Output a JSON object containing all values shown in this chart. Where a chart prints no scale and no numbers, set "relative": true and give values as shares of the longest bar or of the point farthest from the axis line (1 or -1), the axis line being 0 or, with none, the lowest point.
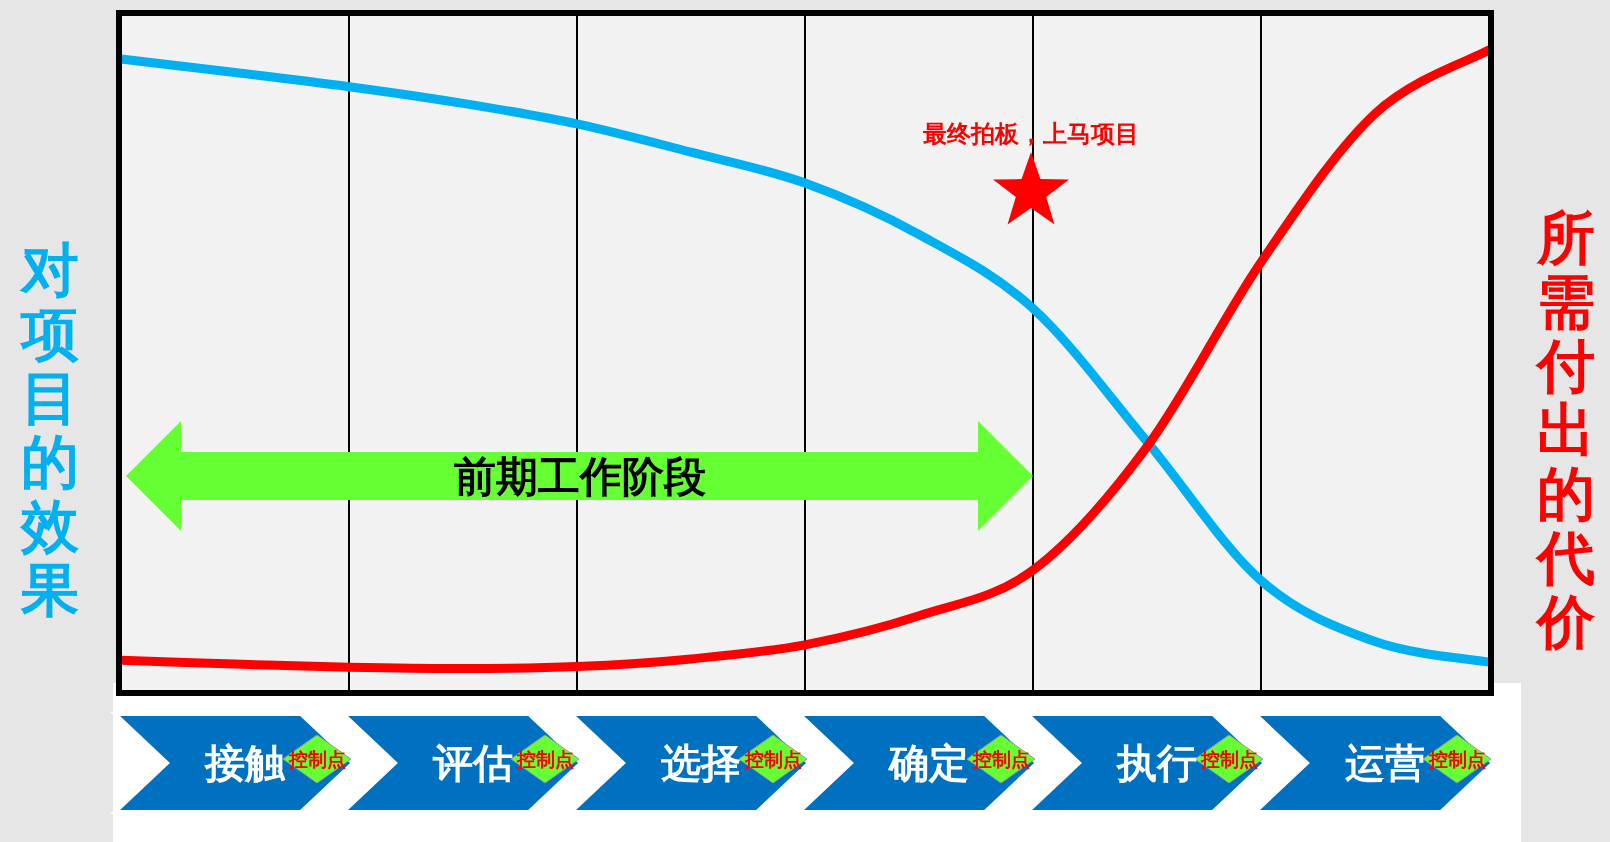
{
  "chart_data": {
    "type": "line",
    "relative": true,
    "grid": "x",
    "ylabel": "对项目的效果",
    "y2label": "所需付出的代价",
    "categories": [
      null,
      "接触",
      null,
      "评估",
      null,
      "选择",
      null,
      "确定",
      null,
      "执行",
      null,
      "运营",
      null
    ],
    "series": [
      {
        "color": "#00b0f0",
        "values": [
          0.986,
          0.965,
          0.943,
          0.917,
          0.885,
          0.841,
          0.793,
          0.713,
          0.598,
          0.391,
          0.175,
          0.08,
          0.048
        ]
      },
      {
        "color": "#ff0000",
        "axis": "y2",
        "values": [
          0.051,
          0.045,
          0.04,
          0.038,
          0.041,
          0.053,
          0.075,
          0.12,
          0.191,
          0.383,
          0.67,
          0.901,
          1
        ]
      }
    ],
    "annotations": [
      "最终拍板，上马项目",
      "前期工作阶段",
      "控制点",
      "控制点",
      "控制点",
      "控制点",
      "控制点",
      "控制点"
    ]
  }
}
